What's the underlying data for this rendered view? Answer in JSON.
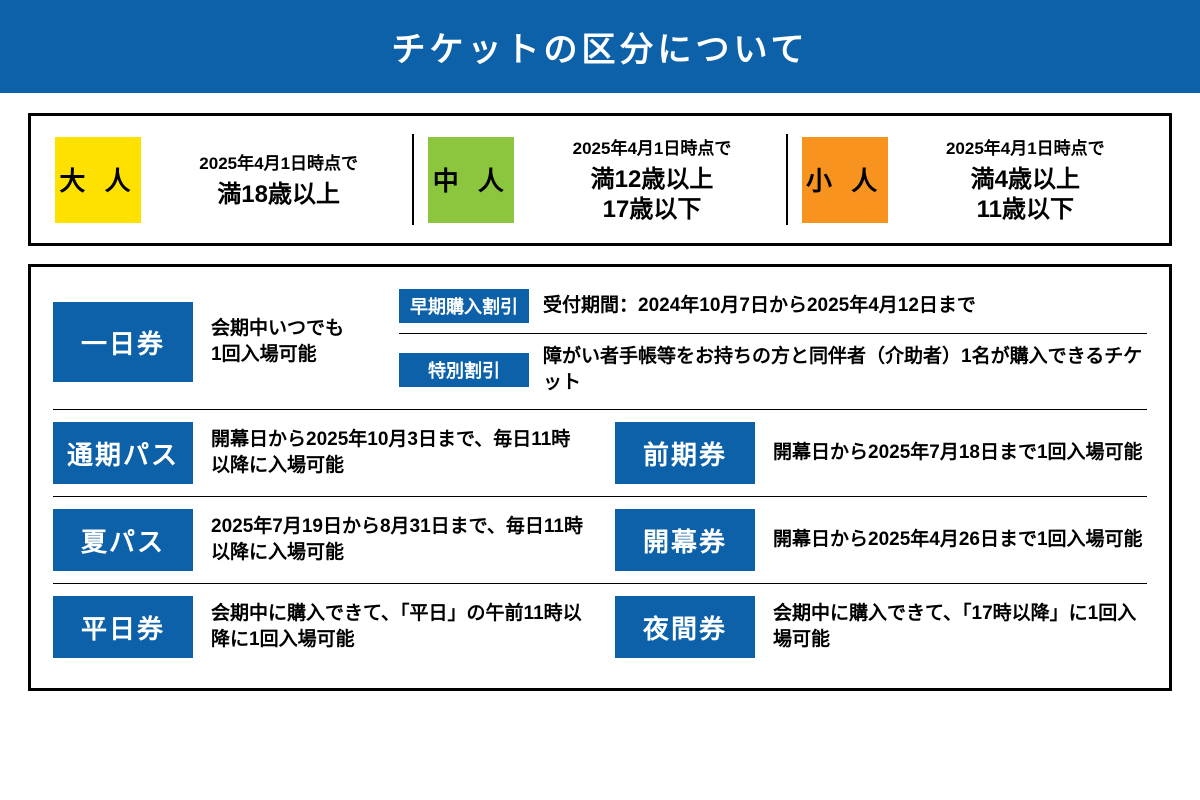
{
  "header": {
    "title": "チケットの区分について"
  },
  "colors": {
    "blue": "#0c61a9",
    "yellow": "#ffe100",
    "green": "#8cc63f",
    "orange": "#f7931e",
    "black": "#000000",
    "white": "#ffffff"
  },
  "ageCategories": [
    {
      "label": "大 人",
      "bg": "#ffe100",
      "fg": "#000000",
      "dateNote": "2025年4月1日時点で",
      "range": "満18歳以上"
    },
    {
      "label": "中 人",
      "bg": "#8cc63f",
      "fg": "#000000",
      "dateNote": "2025年4月1日時点で",
      "range": "満12歳以上\n17歳以下"
    },
    {
      "label": "小 人",
      "bg": "#f7931e",
      "fg": "#000000",
      "dateNote": "2025年4月1日時点で",
      "range": "満4歳以上\n11歳以下"
    }
  ],
  "ticketTypes": {
    "oneDay": {
      "label": "一日券",
      "desc": "会期中いつでも\n1回入場可能",
      "subs": [
        {
          "badge": "早期購入割引",
          "text": "受付期間：2024年10月7日から2025年4月12日まで"
        },
        {
          "badge": "特別割引",
          "text": "障がい者手帳等をお持ちの方と同伴者（介助者）1名が購入できるチケット"
        }
      ]
    },
    "rows": [
      [
        {
          "label": "通期パス",
          "desc": "開幕日から2025年10月3日まで、毎日11時以降に入場可能"
        },
        {
          "label": "前期券",
          "desc": "開幕日から2025年7月18日まで1回入場可能"
        }
      ],
      [
        {
          "label": "夏パス",
          "desc": "2025年7月19日から8月31日まで、毎日11時以降に入場可能"
        },
        {
          "label": "開幕券",
          "desc": "開幕日から2025年4月26日まで1回入場可能"
        }
      ],
      [
        {
          "label": "平日券",
          "desc": "会期中に購入できて、「平日」の午前11時以降に1回入場可能"
        },
        {
          "label": "夜間券",
          "desc": "会期中に購入できて、「17時以降」に1回入場可能"
        }
      ]
    ]
  }
}
